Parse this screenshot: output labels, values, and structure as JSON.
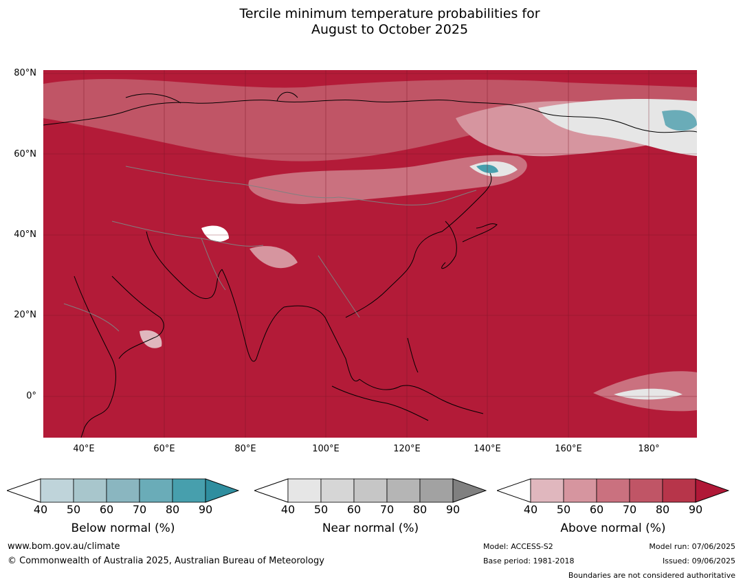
{
  "title": {
    "line1": "Tercile minimum temperature probabilities for",
    "line2": "August to October 2025"
  },
  "map": {
    "latitude_labels": [
      "80°N",
      "60°N",
      "40°N",
      "20°N",
      "0°"
    ],
    "longitude_labels": [
      "40°E",
      "60°E",
      "80°E",
      "100°E",
      "120°E",
      "140°E",
      "160°E",
      "180°"
    ],
    "colors": {
      "above_dominant": "#b31b38",
      "near_normal_patch": "#dcdcdc",
      "below_normal_patch": "#4aa0b0",
      "coastline": "#000000",
      "borders": "#808080"
    }
  },
  "legends": [
    {
      "name": "Below normal (%)",
      "ticks": [
        "40",
        "50",
        "60",
        "70",
        "80",
        "90"
      ],
      "colors": [
        "#ffffff",
        "#bfd4da",
        "#a8c6cc",
        "#8ab6c0",
        "#6aacb8",
        "#479fad",
        "#2f8e9f"
      ]
    },
    {
      "name": "Near normal (%)",
      "ticks": [
        "40",
        "50",
        "60",
        "70",
        "80",
        "90"
      ],
      "colors": [
        "#ffffff",
        "#e6e6e6",
        "#d6d6d6",
        "#c6c6c6",
        "#b5b5b5",
        "#a2a2a2",
        "#808080"
      ]
    },
    {
      "name": "Above normal (%)",
      "ticks": [
        "40",
        "50",
        "60",
        "70",
        "80",
        "90"
      ],
      "colors": [
        "#ffffff",
        "#e0b7be",
        "#d6959f",
        "#ca717f",
        "#c05566",
        "#b7354a",
        "#b01837"
      ]
    }
  ],
  "footer": {
    "website": "www.bom.gov.au/climate",
    "copyright": "© Commonwealth of Australia 2025, Australian Bureau of Meteorology",
    "model": "Model: ACCESS-S2",
    "base_period": "Base period: 1981-2018",
    "model_run": "Model run: 07/06/2025",
    "issued": "Issued: 09/06/2025",
    "disclaimer": "Boundaries are not considered authoritative"
  }
}
